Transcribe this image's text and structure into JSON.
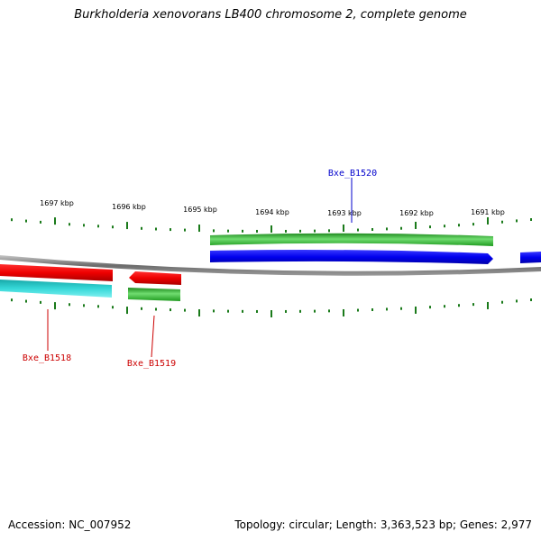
{
  "title": "Burkholderia xenovorans LB400 chromosome 2, complete genome",
  "footer": {
    "accession": "Accession: NC_007952",
    "summary": "Topology: circular; Length: 3,363,523 bp; Genes: 2,977"
  },
  "colors": {
    "backbone": "#7f7f7f",
    "tick": "#1a7a1a",
    "forward_cds": "#0000ee",
    "forward_gene": "#2ea82e",
    "reverse_cds": "#ee0000",
    "reverse_gene": "#22c6c6",
    "label_blue": "#0000cc",
    "label_red": "#cc0000"
  },
  "scale_labels": [
    "1697 kbp",
    "1696 kbp",
    "1695 kbp",
    "1694 kbp",
    "1693 kbp",
    "1692 kbp",
    "1691 kbp"
  ],
  "gene_labels": [
    {
      "name": "Bxe_B1520",
      "color": "label_blue"
    },
    {
      "name": "Bxe_B1518",
      "color": "label_red"
    },
    {
      "name": "Bxe_B1519",
      "color": "label_red"
    }
  ]
}
